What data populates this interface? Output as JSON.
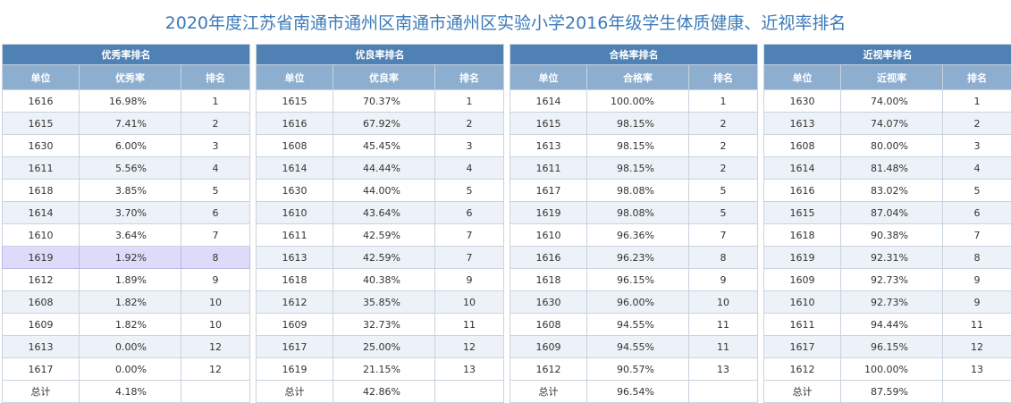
{
  "page_title": "2020年度江苏省南通市通州区南通市通州区实验小学2016年级学生体质健康、近视率排名",
  "tables": [
    {
      "group_title": "优秀率排名",
      "col_unit": "单位",
      "col_rate": "优秀率",
      "col_rank": "排名",
      "rows": [
        {
          "unit": "1616",
          "rate": "16.98%",
          "rank": "1"
        },
        {
          "unit": "1615",
          "rate": "7.41%",
          "rank": "2"
        },
        {
          "unit": "1630",
          "rate": "6.00%",
          "rank": "3"
        },
        {
          "unit": "1611",
          "rate": "5.56%",
          "rank": "4"
        },
        {
          "unit": "1618",
          "rate": "3.85%",
          "rank": "5"
        },
        {
          "unit": "1614",
          "rate": "3.70%",
          "rank": "6"
        },
        {
          "unit": "1610",
          "rate": "3.64%",
          "rank": "7"
        },
        {
          "unit": "1619",
          "rate": "1.92%",
          "rank": "8",
          "highlighted": true
        },
        {
          "unit": "1612",
          "rate": "1.89%",
          "rank": "9"
        },
        {
          "unit": "1608",
          "rate": "1.82%",
          "rank": "10"
        },
        {
          "unit": "1609",
          "rate": "1.82%",
          "rank": "10"
        },
        {
          "unit": "1613",
          "rate": "0.00%",
          "rank": "12"
        },
        {
          "unit": "1617",
          "rate": "0.00%",
          "rank": "12"
        }
      ],
      "total_label": "总计",
      "total_rate": "4.18%",
      "total_rank": ""
    },
    {
      "group_title": "优良率排名",
      "col_unit": "单位",
      "col_rate": "优良率",
      "col_rank": "排名",
      "rows": [
        {
          "unit": "1615",
          "rate": "70.37%",
          "rank": "1"
        },
        {
          "unit": "1616",
          "rate": "67.92%",
          "rank": "2"
        },
        {
          "unit": "1608",
          "rate": "45.45%",
          "rank": "3"
        },
        {
          "unit": "1614",
          "rate": "44.44%",
          "rank": "4"
        },
        {
          "unit": "1630",
          "rate": "44.00%",
          "rank": "5"
        },
        {
          "unit": "1610",
          "rate": "43.64%",
          "rank": "6"
        },
        {
          "unit": "1611",
          "rate": "42.59%",
          "rank": "7"
        },
        {
          "unit": "1613",
          "rate": "42.59%",
          "rank": "7"
        },
        {
          "unit": "1618",
          "rate": "40.38%",
          "rank": "9"
        },
        {
          "unit": "1612",
          "rate": "35.85%",
          "rank": "10"
        },
        {
          "unit": "1609",
          "rate": "32.73%",
          "rank": "11"
        },
        {
          "unit": "1617",
          "rate": "25.00%",
          "rank": "12"
        },
        {
          "unit": "1619",
          "rate": "21.15%",
          "rank": "13"
        }
      ],
      "total_label": "总计",
      "total_rate": "42.86%",
      "total_rank": ""
    },
    {
      "group_title": "合格率排名",
      "col_unit": "单位",
      "col_rate": "合格率",
      "col_rank": "排名",
      "rows": [
        {
          "unit": "1614",
          "rate": "100.00%",
          "rank": "1"
        },
        {
          "unit": "1615",
          "rate": "98.15%",
          "rank": "2"
        },
        {
          "unit": "1613",
          "rate": "98.15%",
          "rank": "2"
        },
        {
          "unit": "1611",
          "rate": "98.15%",
          "rank": "2"
        },
        {
          "unit": "1617",
          "rate": "98.08%",
          "rank": "5"
        },
        {
          "unit": "1619",
          "rate": "98.08%",
          "rank": "5"
        },
        {
          "unit": "1610",
          "rate": "96.36%",
          "rank": "7"
        },
        {
          "unit": "1616",
          "rate": "96.23%",
          "rank": "8"
        },
        {
          "unit": "1618",
          "rate": "96.15%",
          "rank": "9"
        },
        {
          "unit": "1630",
          "rate": "96.00%",
          "rank": "10"
        },
        {
          "unit": "1608",
          "rate": "94.55%",
          "rank": "11"
        },
        {
          "unit": "1609",
          "rate": "94.55%",
          "rank": "11"
        },
        {
          "unit": "1612",
          "rate": "90.57%",
          "rank": "13"
        }
      ],
      "total_label": "总计",
      "total_rate": "96.54%",
      "total_rank": ""
    },
    {
      "group_title": "近视率排名",
      "col_unit": "单位",
      "col_rate": "近视率",
      "col_rank": "排名",
      "rows": [
        {
          "unit": "1630",
          "rate": "74.00%",
          "rank": "1"
        },
        {
          "unit": "1613",
          "rate": "74.07%",
          "rank": "2"
        },
        {
          "unit": "1608",
          "rate": "80.00%",
          "rank": "3"
        },
        {
          "unit": "1614",
          "rate": "81.48%",
          "rank": "4"
        },
        {
          "unit": "1616",
          "rate": "83.02%",
          "rank": "5"
        },
        {
          "unit": "1615",
          "rate": "87.04%",
          "rank": "6"
        },
        {
          "unit": "1618",
          "rate": "90.38%",
          "rank": "7"
        },
        {
          "unit": "1619",
          "rate": "92.31%",
          "rank": "8"
        },
        {
          "unit": "1609",
          "rate": "92.73%",
          "rank": "9"
        },
        {
          "unit": "1610",
          "rate": "92.73%",
          "rank": "9"
        },
        {
          "unit": "1611",
          "rate": "94.44%",
          "rank": "11"
        },
        {
          "unit": "1617",
          "rate": "96.15%",
          "rank": "12"
        },
        {
          "unit": "1612",
          "rate": "100.00%",
          "rank": "13"
        }
      ],
      "total_label": "总计",
      "total_rate": "87.59%",
      "total_rank": ""
    }
  ]
}
